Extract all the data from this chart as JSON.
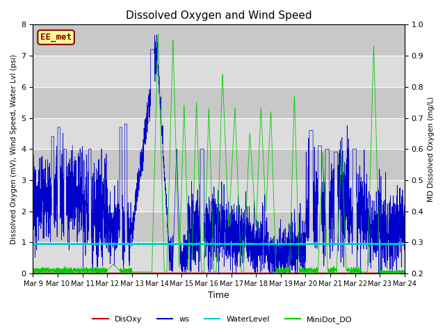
{
  "title": "Dissolved Oxygen and Wind Speed",
  "xlabel": "Time",
  "ylabel_left": "Dissolved Oxygen (mV), Wind Speed, Water Lvl (psi)",
  "ylabel_right": "MD Dissolved Oxygen (mg/L)",
  "ylim_left": [
    0.0,
    8.0
  ],
  "ylim_right": [
    0.2,
    1.0
  ],
  "yticks_left": [
    0.0,
    1.0,
    2.0,
    3.0,
    4.0,
    5.0,
    6.0,
    7.0,
    8.0
  ],
  "yticks_right": [
    0.2,
    0.3,
    0.4,
    0.5,
    0.6,
    0.7,
    0.8,
    0.9,
    1.0
  ],
  "xtick_labels": [
    "Mar 9",
    "Mar 10",
    "Mar 11",
    "Mar 12",
    "Mar 13",
    "Mar 14",
    "Mar 15",
    "Mar 16",
    "Mar 17",
    "Mar 18",
    "Mar 19",
    "Mar 20",
    "Mar 21",
    "Mar 22",
    "Mar 23",
    "Mar 24"
  ],
  "annotation_text": "EE_met",
  "annotation_color": "#8B0000",
  "annotation_bg": "#FFFF99",
  "color_disoxy": "#CC0000",
  "color_ws": "#0000CC",
  "color_waterlevel": "#00CCCC",
  "color_minidot": "#00CC00",
  "legend_labels": [
    "DisOxy",
    "ws",
    "WaterLevel",
    "MiniDot_DO"
  ],
  "bg_outer": "#DCDCDC",
  "bg_band_light": "#E8E8E8",
  "bg_band_dark": "#D8D8D8",
  "seed": 42,
  "n_points": 3000
}
